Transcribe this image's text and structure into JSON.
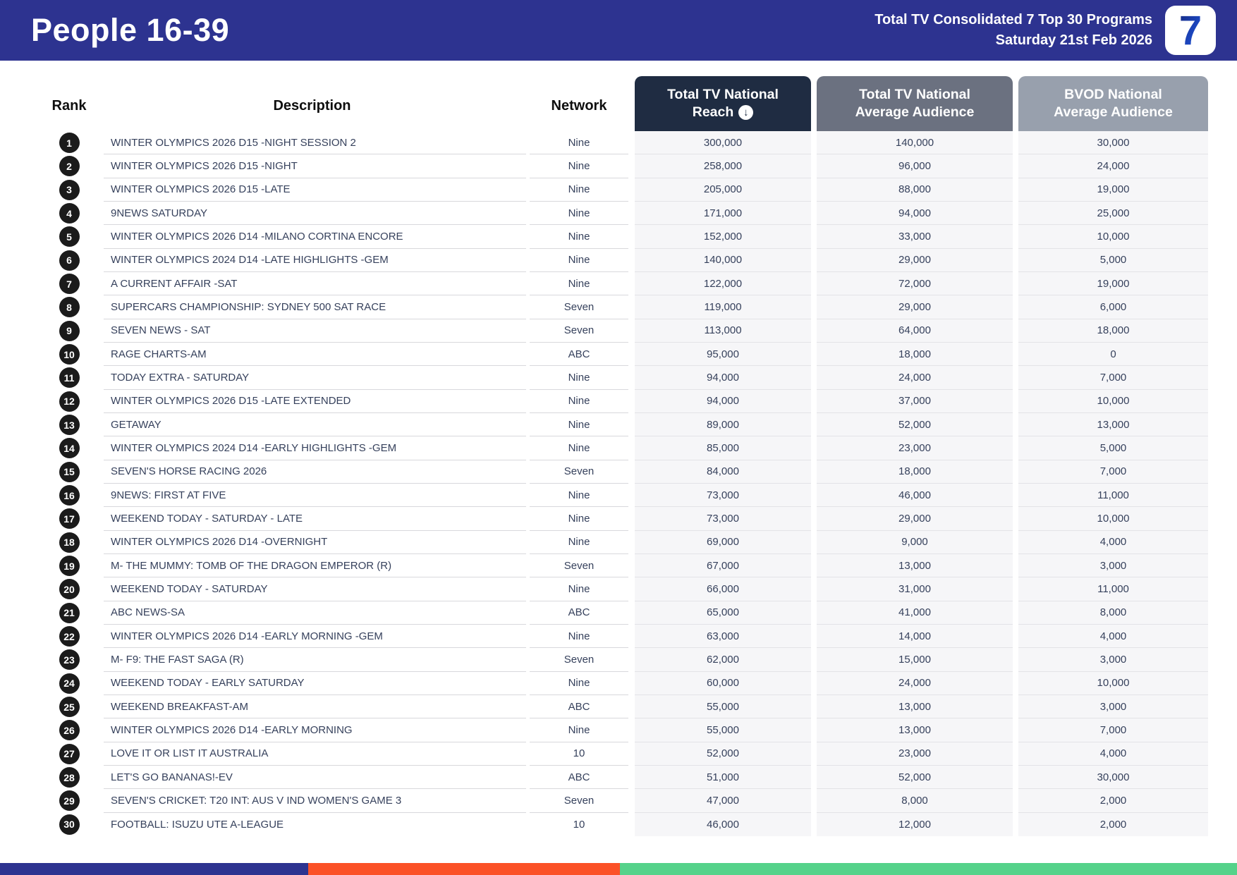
{
  "header": {
    "title": "People 16-39",
    "subtitle_line1": "Total TV Consolidated 7 Top 30 Programs",
    "subtitle_line2": "Saturday 21st Feb 2026",
    "logo_text": "7"
  },
  "table": {
    "columns": {
      "rank": "Rank",
      "description": "Description",
      "network": "Network",
      "reach_line1": "Total TV National",
      "reach_line2": "Reach",
      "avg_line1": "Total TV National",
      "avg_line2": "Average Audience",
      "bvod_line1": "BVOD National",
      "bvod_line2": "Average Audience"
    },
    "sort_icon": "down-arrow-circle",
    "rows": [
      {
        "rank": "1",
        "description": "WINTER OLYMPICS 2026 D15 -NIGHT SESSION 2",
        "network": "Nine",
        "reach": "300,000",
        "avg_audience": "140,000",
        "bvod_audience": "30,000"
      },
      {
        "rank": "2",
        "description": "WINTER OLYMPICS 2026 D15 -NIGHT",
        "network": "Nine",
        "reach": "258,000",
        "avg_audience": "96,000",
        "bvod_audience": "24,000"
      },
      {
        "rank": "3",
        "description": "WINTER OLYMPICS 2026 D15 -LATE",
        "network": "Nine",
        "reach": "205,000",
        "avg_audience": "88,000",
        "bvod_audience": "19,000"
      },
      {
        "rank": "4",
        "description": "9NEWS SATURDAY",
        "network": "Nine",
        "reach": "171,000",
        "avg_audience": "94,000",
        "bvod_audience": "25,000"
      },
      {
        "rank": "5",
        "description": "WINTER OLYMPICS 2026 D14 -MILANO CORTINA ENCORE",
        "network": "Nine",
        "reach": "152,000",
        "avg_audience": "33,000",
        "bvod_audience": "10,000"
      },
      {
        "rank": "6",
        "description": "WINTER OLYMPICS 2024 D14 -LATE HIGHLIGHTS -GEM",
        "network": "Nine",
        "reach": "140,000",
        "avg_audience": "29,000",
        "bvod_audience": "5,000"
      },
      {
        "rank": "7",
        "description": "A CURRENT AFFAIR -SAT",
        "network": "Nine",
        "reach": "122,000",
        "avg_audience": "72,000",
        "bvod_audience": "19,000"
      },
      {
        "rank": "8",
        "description": "SUPERCARS CHAMPIONSHIP: SYDNEY 500 SAT RACE",
        "network": "Seven",
        "reach": "119,000",
        "avg_audience": "29,000",
        "bvod_audience": "6,000"
      },
      {
        "rank": "9",
        "description": "SEVEN NEWS - SAT",
        "network": "Seven",
        "reach": "113,000",
        "avg_audience": "64,000",
        "bvod_audience": "18,000"
      },
      {
        "rank": "10",
        "description": "RAGE CHARTS-AM",
        "network": "ABC",
        "reach": "95,000",
        "avg_audience": "18,000",
        "bvod_audience": "0"
      },
      {
        "rank": "11",
        "description": "TODAY EXTRA - SATURDAY",
        "network": "Nine",
        "reach": "94,000",
        "avg_audience": "24,000",
        "bvod_audience": "7,000"
      },
      {
        "rank": "12",
        "description": "WINTER OLYMPICS 2026 D15 -LATE EXTENDED",
        "network": "Nine",
        "reach": "94,000",
        "avg_audience": "37,000",
        "bvod_audience": "10,000"
      },
      {
        "rank": "13",
        "description": "GETAWAY",
        "network": "Nine",
        "reach": "89,000",
        "avg_audience": "52,000",
        "bvod_audience": "13,000"
      },
      {
        "rank": "14",
        "description": "WINTER OLYMPICS 2024 D14 -EARLY HIGHLIGHTS -GEM",
        "network": "Nine",
        "reach": "85,000",
        "avg_audience": "23,000",
        "bvod_audience": "5,000"
      },
      {
        "rank": "15",
        "description": "SEVEN'S HORSE RACING 2026",
        "network": "Seven",
        "reach": "84,000",
        "avg_audience": "18,000",
        "bvod_audience": "7,000"
      },
      {
        "rank": "16",
        "description": "9NEWS: FIRST AT FIVE",
        "network": "Nine",
        "reach": "73,000",
        "avg_audience": "46,000",
        "bvod_audience": "11,000"
      },
      {
        "rank": "17",
        "description": "WEEKEND TODAY - SATURDAY - LATE",
        "network": "Nine",
        "reach": "73,000",
        "avg_audience": "29,000",
        "bvod_audience": "10,000"
      },
      {
        "rank": "18",
        "description": "WINTER OLYMPICS 2026 D14 -OVERNIGHT",
        "network": "Nine",
        "reach": "69,000",
        "avg_audience": "9,000",
        "bvod_audience": "4,000"
      },
      {
        "rank": "19",
        "description": "M- THE MUMMY: TOMB OF THE DRAGON EMPEROR (R)",
        "network": "Seven",
        "reach": "67,000",
        "avg_audience": "13,000",
        "bvod_audience": "3,000"
      },
      {
        "rank": "20",
        "description": "WEEKEND TODAY - SATURDAY",
        "network": "Nine",
        "reach": "66,000",
        "avg_audience": "31,000",
        "bvod_audience": "11,000"
      },
      {
        "rank": "21",
        "description": "ABC NEWS-SA",
        "network": "ABC",
        "reach": "65,000",
        "avg_audience": "41,000",
        "bvod_audience": "8,000"
      },
      {
        "rank": "22",
        "description": "WINTER OLYMPICS 2026 D14 -EARLY MORNING -GEM",
        "network": "Nine",
        "reach": "63,000",
        "avg_audience": "14,000",
        "bvod_audience": "4,000"
      },
      {
        "rank": "23",
        "description": "M- F9: THE FAST SAGA (R)",
        "network": "Seven",
        "reach": "62,000",
        "avg_audience": "15,000",
        "bvod_audience": "3,000"
      },
      {
        "rank": "24",
        "description": "WEEKEND TODAY - EARLY SATURDAY",
        "network": "Nine",
        "reach": "60,000",
        "avg_audience": "24,000",
        "bvod_audience": "10,000"
      },
      {
        "rank": "25",
        "description": "WEEKEND BREAKFAST-AM",
        "network": "ABC",
        "reach": "55,000",
        "avg_audience": "13,000",
        "bvod_audience": "3,000"
      },
      {
        "rank": "26",
        "description": "WINTER OLYMPICS 2026 D14 -EARLY MORNING",
        "network": "Nine",
        "reach": "55,000",
        "avg_audience": "13,000",
        "bvod_audience": "7,000"
      },
      {
        "rank": "27",
        "description": "LOVE IT OR LIST IT AUSTRALIA",
        "network": "10",
        "reach": "52,000",
        "avg_audience": "23,000",
        "bvod_audience": "4,000"
      },
      {
        "rank": "28",
        "description": "LET'S GO BANANAS!-EV",
        "network": "ABC",
        "reach": "51,000",
        "avg_audience": "52,000",
        "bvod_audience": "30,000"
      },
      {
        "rank": "29",
        "description": "SEVEN'S CRICKET: T20 INT: AUS V IND WOMEN'S GAME 3",
        "network": "Seven",
        "reach": "47,000",
        "avg_audience": "8,000",
        "bvod_audience": "2,000"
      },
      {
        "rank": "30",
        "description": "FOOTBALL: ISUZU UTE A-LEAGUE",
        "network": "10",
        "reach": "46,000",
        "avg_audience": "12,000",
        "bvod_audience": "2,000"
      }
    ]
  },
  "colors": {
    "band_blue": "#2d3390",
    "pill_reach_bg": "#1f2c42",
    "pill_avg_bg": "#6b7180",
    "pill_bvod_bg": "#98a0ad",
    "row_text": "#36415c",
    "badge_bg": "#1b1b1b",
    "footer_blue": "#2d3390",
    "footer_orange": "#fb5127",
    "footer_green": "#55d28a",
    "logo_blue_dark": "#17297f",
    "logo_blue_light": "#2159d8"
  }
}
